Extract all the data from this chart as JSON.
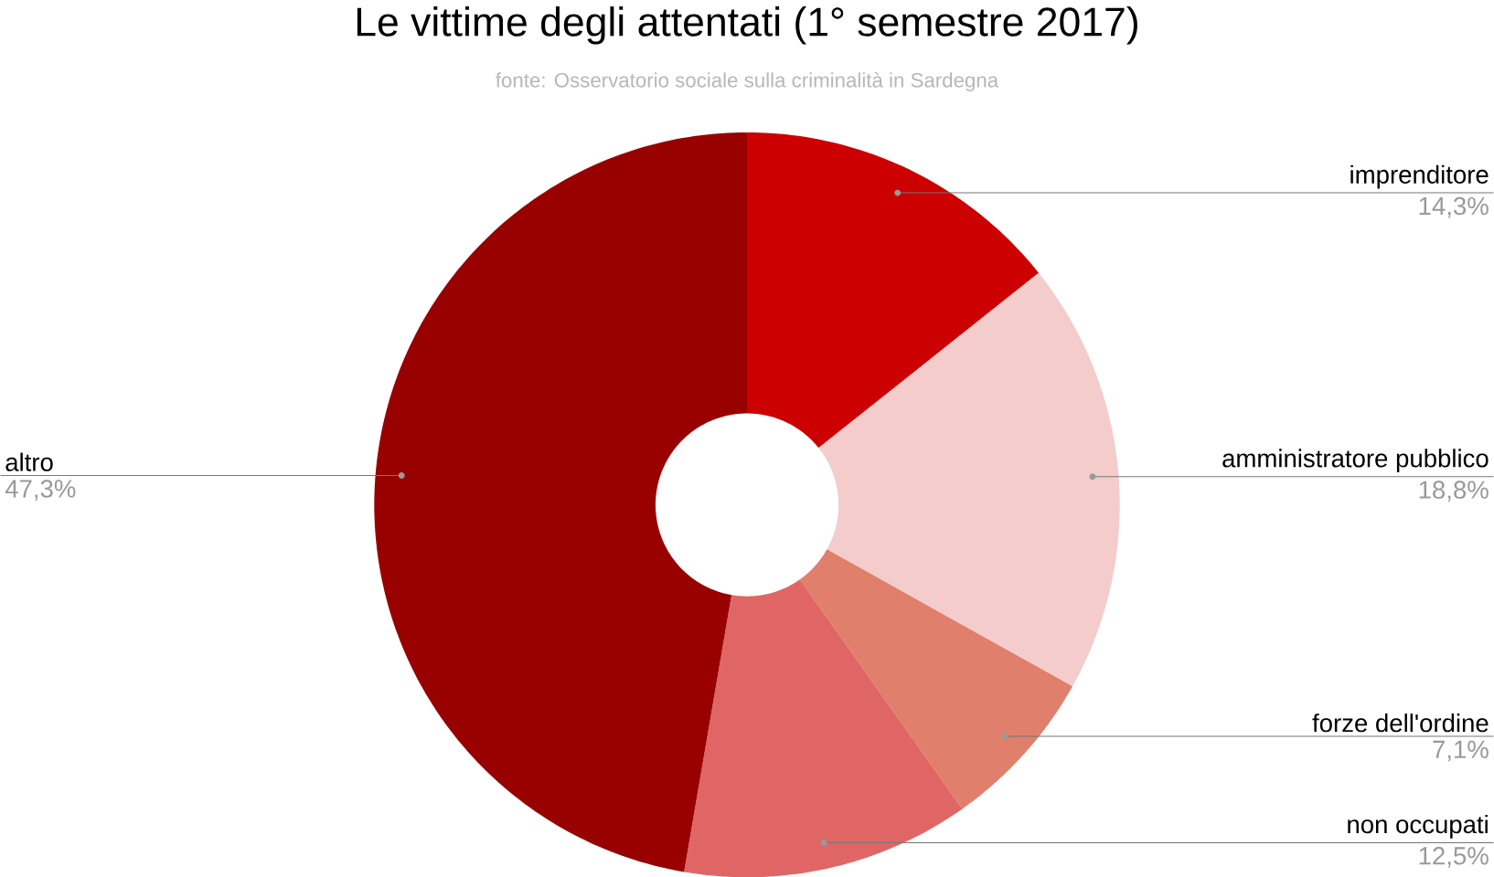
{
  "chart_data": {
    "type": "donut",
    "title": "Le vittime degli attentati (1° semestre 2017)",
    "subtitle": "fonte: Osservatorio sociale sulla criminalità in Sardegna",
    "categories": [
      "imprenditore",
      "amministratore pubblico",
      "forze dell'ordine",
      "non occupati",
      "altro"
    ],
    "values": [
      14.3,
      18.8,
      7.1,
      12.5,
      47.3
    ],
    "colors": [
      "#cc0000",
      "#f4cccc",
      "#e07f6b",
      "#e06666",
      "#990000"
    ],
    "value_labels": [
      "14,3%",
      "18,8%",
      "7,1%",
      "12,5%",
      "47,3%"
    ]
  }
}
